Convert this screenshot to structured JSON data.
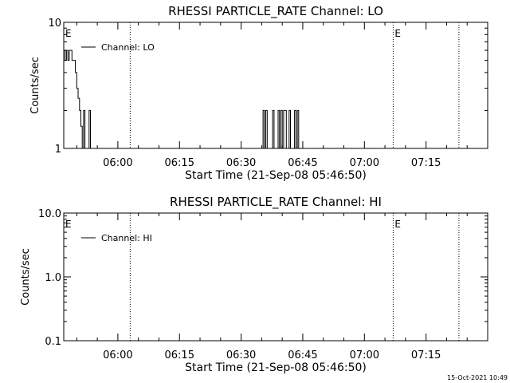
{
  "chart_data": [
    {
      "type": "line",
      "title": "RHESSI PARTICLE_RATE Channel: LO",
      "xlabel": "Start Time (21-Sep-08 05:46:50)",
      "ylabel": "Counts/sec",
      "xlim": [
        "05:46:50",
        "07:30:00"
      ],
      "ylim": [
        1,
        10
      ],
      "yscale": "log",
      "xticks": [
        "06:00",
        "06:15",
        "06:30",
        "06:45",
        "07:00",
        "07:15"
      ],
      "yticks": [
        "1",
        "10"
      ],
      "grid": false,
      "legend": {
        "position": "top-left",
        "entries": [
          "Channel: LO"
        ]
      },
      "markers": [
        {
          "label": "E",
          "time": "05:46:50"
        },
        {
          "label": "",
          "time": "06:03:00"
        },
        {
          "label": "E",
          "time": "07:07:00"
        },
        {
          "label": "",
          "time": "07:23:00"
        }
      ],
      "series": [
        {
          "name": "Channel: LO",
          "points": [
            [
              "05:46:50",
              6
            ],
            [
              "05:47:10",
              5
            ],
            [
              "05:47:30",
              6
            ],
            [
              "05:47:50",
              5
            ],
            [
              "05:48:10",
              6
            ],
            [
              "05:48:30",
              6
            ],
            [
              "05:48:50",
              5
            ],
            [
              "05:49:10",
              5
            ],
            [
              "05:49:40",
              4
            ],
            [
              "05:50:00",
              3
            ],
            [
              "05:50:20",
              2.5
            ],
            [
              "05:50:40",
              2
            ],
            [
              "05:51:00",
              1.5
            ],
            [
              "05:51:20",
              1
            ],
            [
              "05:51:40",
              2
            ],
            [
              "05:52:00",
              1
            ],
            [
              "05:52:40",
              1
            ],
            [
              "05:53:00",
              2
            ],
            [
              "05:53:20",
              1
            ],
            [
              "06:35:00",
              1
            ],
            [
              "06:35:20",
              2
            ],
            [
              "06:35:40",
              1
            ],
            [
              "06:36:00",
              2
            ],
            [
              "06:36:20",
              1
            ],
            [
              "06:37:20",
              1
            ],
            [
              "06:37:40",
              2
            ],
            [
              "06:38:00",
              1
            ],
            [
              "06:38:40",
              1
            ],
            [
              "06:39:00",
              2
            ],
            [
              "06:39:20",
              1
            ],
            [
              "06:39:40",
              2
            ],
            [
              "06:40:00",
              1
            ],
            [
              "06:40:20",
              2
            ],
            [
              "06:40:40",
              2
            ],
            [
              "06:41:00",
              1
            ],
            [
              "06:41:20",
              1
            ],
            [
              "06:41:40",
              2
            ],
            [
              "06:42:00",
              1
            ],
            [
              "06:42:40",
              1
            ],
            [
              "06:43:00",
              2
            ],
            [
              "06:43:20",
              1
            ],
            [
              "06:43:40",
              2
            ],
            [
              "06:44:00",
              1
            ]
          ]
        }
      ]
    },
    {
      "type": "line",
      "title": "RHESSI PARTICLE_RATE Channel: HI",
      "xlabel": "Start Time (21-Sep-08 05:46:50)",
      "ylabel": "Counts/sec",
      "xlim": [
        "05:46:50",
        "07:30:00"
      ],
      "ylim": [
        0.1,
        10
      ],
      "yscale": "log",
      "xticks": [
        "06:00",
        "06:15",
        "06:30",
        "06:45",
        "07:00",
        "07:15"
      ],
      "yticks": [
        "0.1",
        "1.0",
        "10.0"
      ],
      "grid": false,
      "legend": {
        "position": "top-left",
        "entries": [
          "Channel: HI"
        ]
      },
      "markers": [
        {
          "label": "E",
          "time": "05:46:50"
        },
        {
          "label": "",
          "time": "06:03:00"
        },
        {
          "label": "E",
          "time": "07:07:00"
        },
        {
          "label": "",
          "time": "07:23:00"
        }
      ],
      "series": [
        {
          "name": "Channel: HI",
          "points": []
        }
      ]
    }
  ],
  "footer": {
    "timestamp": "15-Oct-2021 10:49"
  }
}
